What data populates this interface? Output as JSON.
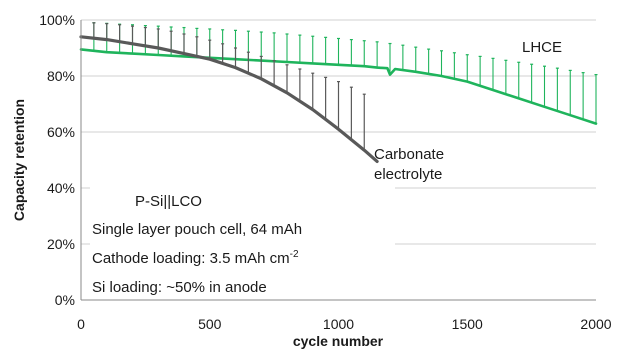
{
  "chart_data": {
    "type": "line",
    "title": "",
    "xlabel": "cycle number",
    "ylabel": "Capacity retention",
    "xlim": [
      0,
      2000
    ],
    "ylim": [
      0,
      100
    ],
    "x_ticks": [
      0,
      500,
      1000,
      1500,
      2000
    ],
    "y_ticks": [
      0,
      20,
      40,
      60,
      80,
      100
    ],
    "y_tick_labels": [
      "0%",
      "20%",
      "40%",
      "60%",
      "80%",
      "100%"
    ],
    "grid": true,
    "series": [
      {
        "name": "LHCE",
        "color": "#1fb45c",
        "x": [
          0,
          100,
          200,
          300,
          400,
          500,
          600,
          700,
          800,
          900,
          1000,
          1100,
          1150,
          1190,
          1200,
          1220,
          1300,
          1400,
          1500,
          1600,
          1700,
          1800,
          1900,
          2000
        ],
        "y": [
          89.5,
          88.5,
          88,
          87.5,
          87,
          86.5,
          86,
          85.5,
          85,
          84.5,
          84,
          83.5,
          83,
          82.8,
          80.5,
          82.5,
          81.5,
          80,
          78,
          75,
          72,
          69,
          66,
          63
        ],
        "recovery_x": [
          50,
          100,
          150,
          200,
          250,
          300,
          350,
          400,
          450,
          500,
          550,
          600,
          650,
          700,
          750,
          800,
          850,
          900,
          950,
          1000,
          1050,
          1100,
          1150,
          1200,
          1250,
          1300,
          1350,
          1400,
          1450,
          1500,
          1550,
          1600,
          1650,
          1700,
          1750,
          1800,
          1850,
          1900,
          1950,
          2000
        ],
        "recovery_y": [
          99,
          98.8,
          98.5,
          98.3,
          98,
          97.8,
          97.5,
          97.3,
          97,
          96.8,
          96.5,
          96.3,
          96,
          95.7,
          95.4,
          95,
          94.6,
          94.2,
          93.8,
          93.4,
          93,
          92.6,
          92.2,
          91.6,
          91,
          90.3,
          89.6,
          89,
          88.3,
          87.6,
          87,
          86.3,
          85.6,
          84.9,
          84.2,
          83.5,
          82.8,
          82,
          81.2,
          80.5
        ]
      },
      {
        "name": "Carbonate electrolyte",
        "color": "#595959",
        "x": [
          0,
          100,
          200,
          300,
          400,
          500,
          600,
          700,
          800,
          900,
          1000,
          1100,
          1150
        ],
        "y": [
          94,
          93,
          91.5,
          90,
          88,
          86,
          83,
          79,
          74,
          68,
          61,
          53.5,
          49.5
        ],
        "recovery_x": [
          50,
          100,
          150,
          200,
          250,
          300,
          350,
          400,
          450,
          500,
          550,
          600,
          650,
          700,
          750,
          800,
          850,
          900,
          950,
          1000,
          1050,
          1100
        ],
        "recovery_y": [
          99,
          98.7,
          98.3,
          97.8,
          97.3,
          96.8,
          96,
          95,
          94,
          92.8,
          91.5,
          90,
          88.5,
          87,
          85.5,
          84,
          82.5,
          81,
          79.5,
          78,
          76,
          73.5
        ]
      }
    ],
    "annotations": {
      "lhce": "LHCE",
      "carbonate_line1": "Carbonate",
      "carbonate_line2": "electrolyte"
    }
  },
  "info_box": {
    "title": "P-Si||LCO",
    "line1": "Single layer pouch cell, 64 mAh",
    "line3_prefix": "Cathode loading: 3.5 mAh cm",
    "line3_sup": "-2",
    "line4": "Si loading: ~50% in anode"
  }
}
